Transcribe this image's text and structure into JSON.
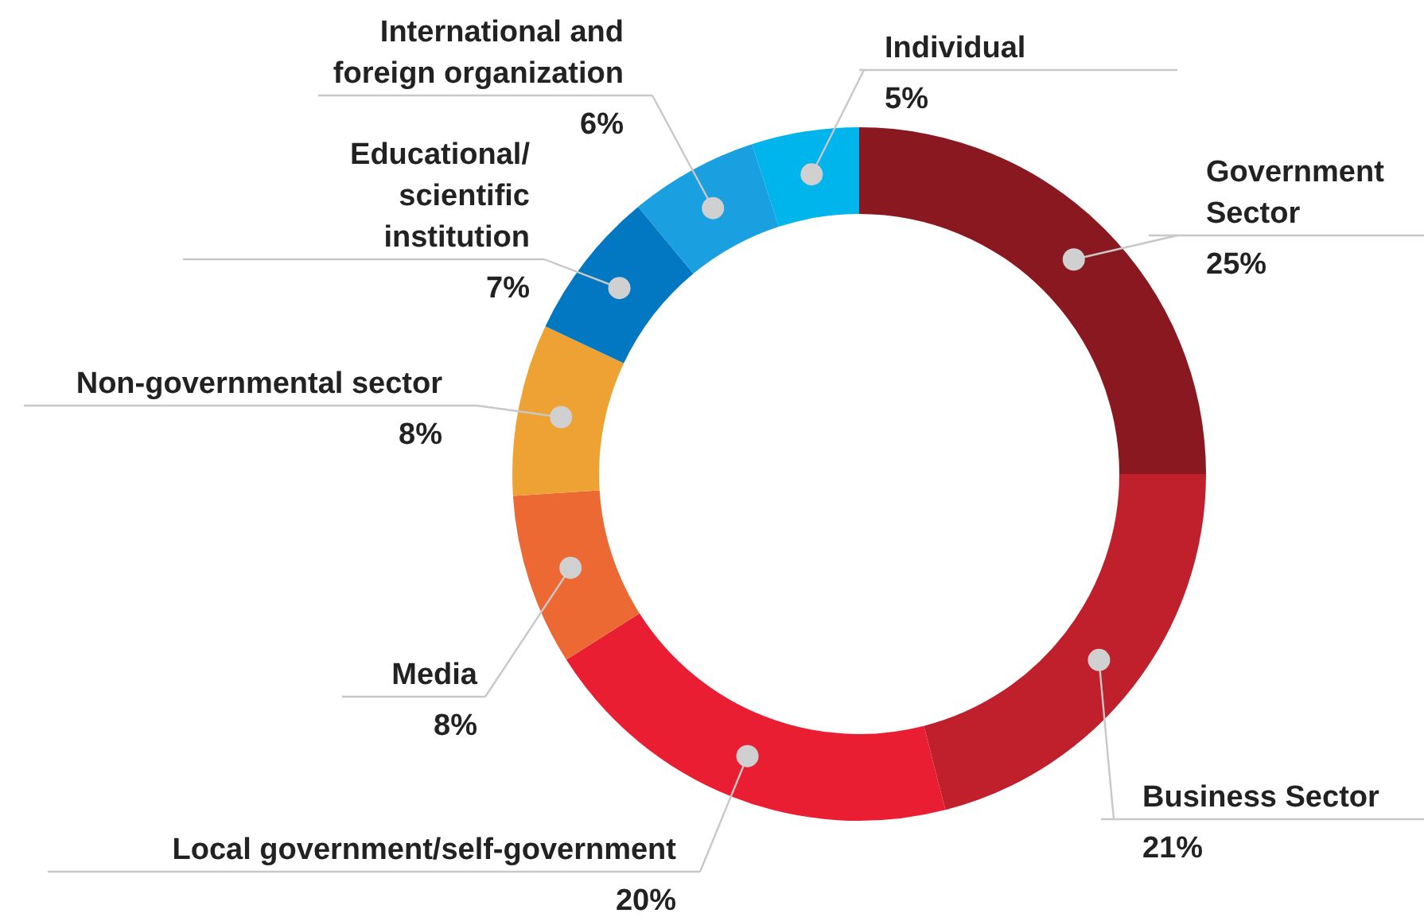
{
  "chart_data": {
    "type": "donut",
    "categories": [
      "Government Sector",
      "Business Sector",
      "Local government/self-government",
      "Media",
      "Non-governmental sector",
      "Educational/scientific institution",
      "International and foreign organization",
      "Individual"
    ],
    "values": [
      25,
      21,
      20,
      8,
      8,
      7,
      6,
      5
    ],
    "colors": [
      "#8a1820",
      "#bf202c",
      "#e91e33",
      "#ec6934",
      "#eea233",
      "#0178c1",
      "#1a9fe0",
      "#00b4ec"
    ],
    "value_labels": [
      "25%",
      "21%",
      "20%",
      "8%",
      "8%",
      "7%",
      "6%",
      "5%"
    ],
    "legend": false
  }
}
